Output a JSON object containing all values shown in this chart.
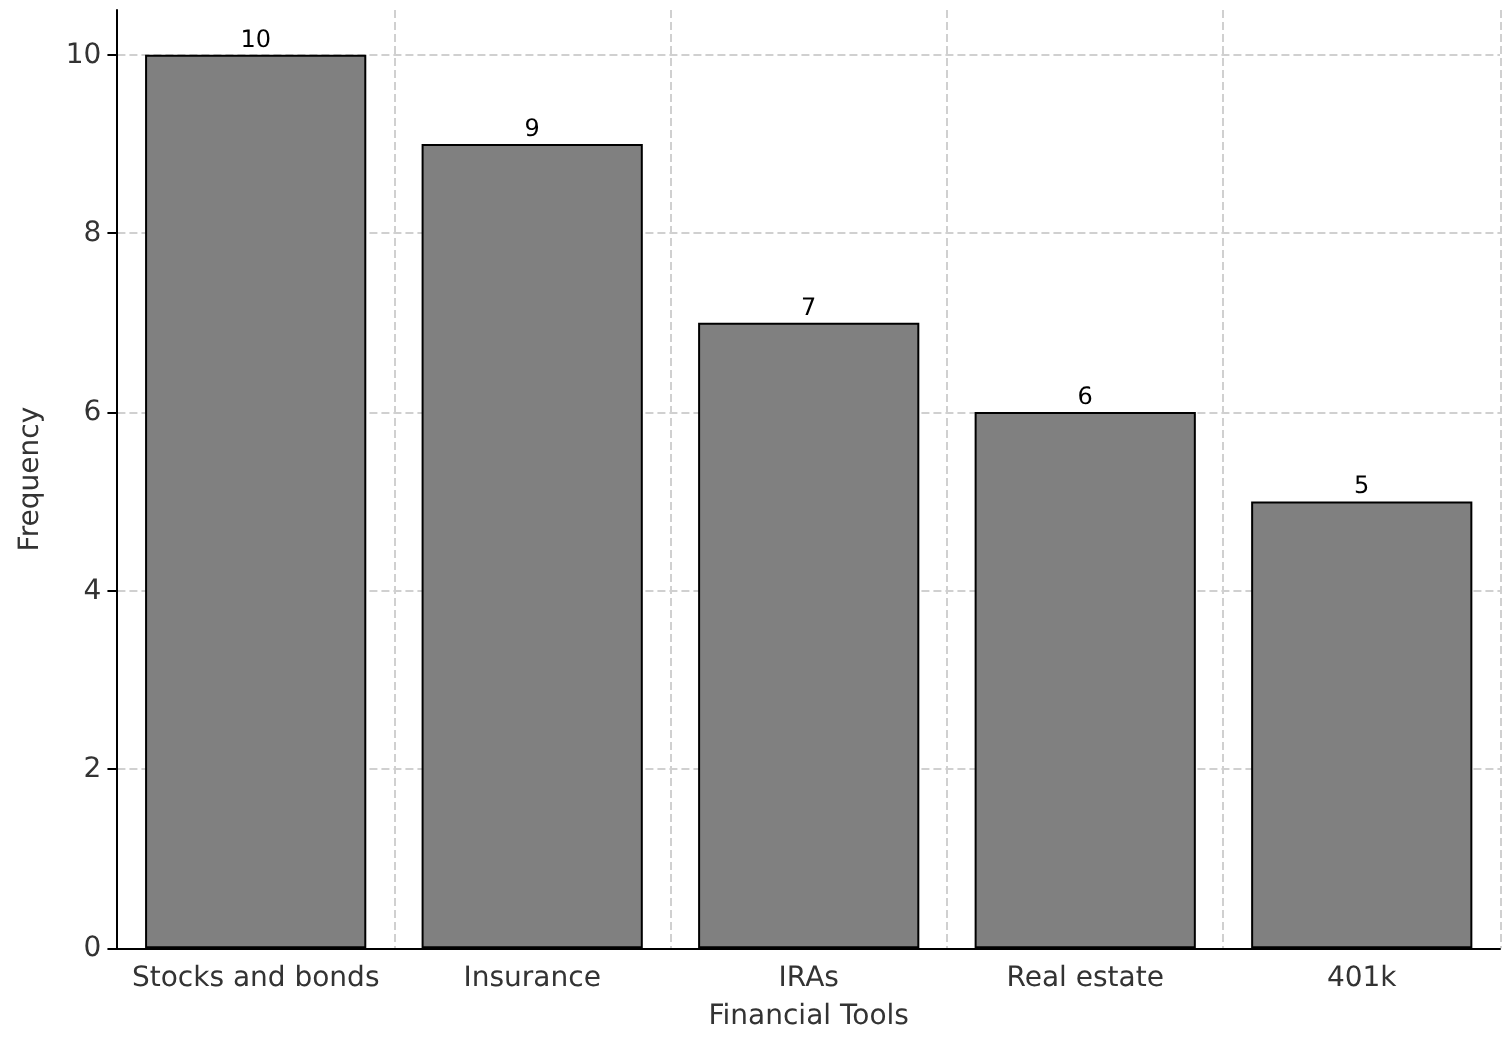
{
  "chart_data": {
    "type": "bar",
    "xlabel": "Financial Tools",
    "ylabel": "Frequency",
    "categories": [
      "Stocks and bonds",
      "Insurance",
      "IRAs",
      "Real estate",
      "401k"
    ],
    "values": [
      10,
      9,
      7,
      6,
      5
    ],
    "color": "#808080",
    "ylim": [
      0,
      10.5
    ],
    "yticks": [
      0,
      2,
      4,
      6,
      8,
      10
    ],
    "grid": true,
    "data_labels": true
  }
}
